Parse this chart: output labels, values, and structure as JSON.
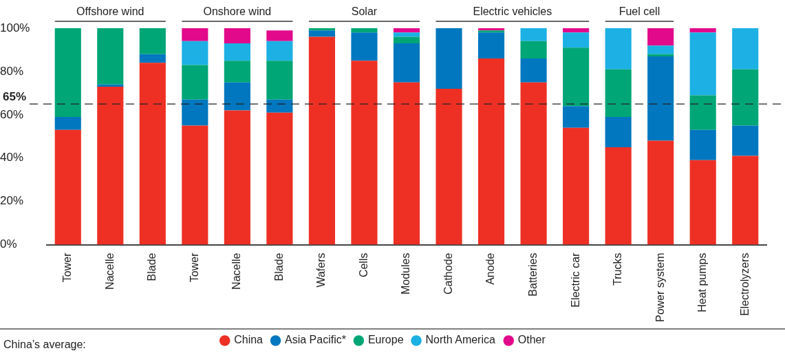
{
  "chart_data": {
    "type": "bar",
    "stacked": true,
    "categories": [
      "Tower",
      "Nacelle",
      "Blade",
      "Tower",
      "Nacelle",
      "Blade",
      "Wafers",
      "Cells",
      "Modules",
      "Cathode",
      "Anode",
      "Batteries",
      "Electric car",
      "Trucks",
      "Power system",
      "Heat pumps",
      "Electrolyzers"
    ],
    "series": [
      {
        "name": "China",
        "color": "#ee3024",
        "values": [
          53,
          73,
          84,
          55,
          62,
          61,
          96,
          85,
          75,
          72,
          86,
          75,
          54,
          45,
          48,
          39,
          41
        ]
      },
      {
        "name": "Asia Pacific*",
        "color": "#0077be",
        "values": [
          6,
          1,
          4,
          12,
          13,
          6,
          3,
          13,
          18,
          28,
          12,
          11,
          10,
          14,
          39,
          14,
          14
        ]
      },
      {
        "name": "Europe",
        "color": "#00a676",
        "values": [
          41,
          26,
          12,
          16,
          10,
          18,
          1,
          2,
          3,
          null,
          1,
          8,
          27,
          22,
          1,
          16,
          26
        ]
      },
      {
        "name": "North America",
        "color": "#1cb0e4",
        "values": [
          null,
          null,
          null,
          11,
          8,
          9,
          null,
          null,
          2,
          null,
          null,
          6,
          7,
          19,
          4,
          29,
          19
        ]
      },
      {
        "name": "Other",
        "color": "#e20a8a",
        "values": [
          null,
          null,
          null,
          6,
          7,
          5,
          null,
          null,
          2,
          null,
          1,
          null,
          2,
          null,
          8,
          2,
          null
        ]
      }
    ],
    "ylim": [
      0,
      100
    ],
    "yticks": [
      {
        "value": 0,
        "label": "0%"
      },
      {
        "value": 20,
        "label": "20%"
      },
      {
        "value": 40,
        "label": "40%"
      },
      {
        "value": 60,
        "label": "60%"
      },
      {
        "value": 80,
        "label": "80%"
      },
      {
        "value": 100,
        "label": "100%"
      }
    ],
    "grid": false,
    "legend": "bottom",
    "ref_lines": [
      {
        "axis": "y",
        "value": 65,
        "label": "65%",
        "color": "#222222",
        "line_style": "dashed"
      }
    ],
    "annotations": [
      "Offshore wind",
      "Onshore wind",
      "Solar",
      "Electric vehicles",
      "Fuel cell",
      "China’s average:"
    ]
  }
}
